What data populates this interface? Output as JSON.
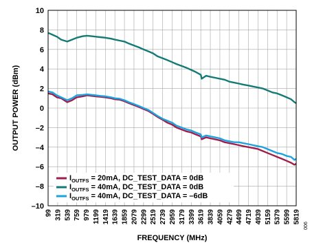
{
  "chart_data": {
    "type": "line",
    "title": "",
    "xlabel": "FREQUENCY (MHz)",
    "ylabel": "OUTPUT POWER (dBm)",
    "xlim": [
      99,
      5819
    ],
    "ylim": [
      -10,
      10
    ],
    "x_ticks": [
      99,
      319,
      539,
      759,
      979,
      1199,
      1419,
      1639,
      1859,
      2079,
      2299,
      2519,
      2739,
      2959,
      3179,
      3399,
      3619,
      3839,
      4059,
      4279,
      4499,
      4719,
      4939,
      5159,
      5379,
      5599,
      5819
    ],
    "y_ticks": [
      -10,
      -8,
      -6,
      -4,
      -2,
      0,
      2,
      4,
      6,
      8,
      10
    ],
    "grid": true,
    "legend_position": "bottom-left",
    "figure_id": "006",
    "series": [
      {
        "name_main": "I",
        "name_sub": "OUTFS",
        "name_rest": " = 20mA, DC_TEST_DATA = 0dB",
        "color": "#9e1f4d",
        "x": [
          99,
          200,
          300,
          400,
          539,
          650,
          759,
          900,
          1000,
          1100,
          1199,
          1300,
          1419,
          1550,
          1639,
          1750,
          1859,
          1960,
          2079,
          2200,
          2299,
          2410,
          2519,
          2620,
          2739,
          2850,
          2959,
          3060,
          3179,
          3300,
          3399,
          3500,
          3619,
          3640,
          3740,
          3839,
          3950,
          4059,
          4170,
          4279,
          4390,
          4499,
          4600,
          4719,
          4830,
          4939,
          5050,
          5159,
          5270,
          5379,
          5490,
          5599,
          5700,
          5780,
          5819
        ],
        "y": [
          1.5,
          1.4,
          1.1,
          1.0,
          0.6,
          0.8,
          1.1,
          1.2,
          1.3,
          1.25,
          1.2,
          1.15,
          1.1,
          1.0,
          0.9,
          0.85,
          0.7,
          0.5,
          0.3,
          0.1,
          -0.1,
          -0.3,
          -0.6,
          -0.9,
          -1.2,
          -1.5,
          -1.7,
          -2.0,
          -2.2,
          -2.4,
          -2.5,
          -2.7,
          -2.9,
          -3.2,
          -3.0,
          -3.1,
          -3.2,
          -3.3,
          -3.5,
          -3.6,
          -3.7,
          -3.8,
          -3.9,
          -4.0,
          -4.1,
          -4.2,
          -4.4,
          -4.6,
          -4.8,
          -5.0,
          -5.2,
          -5.4,
          -5.6,
          -5.8,
          -5.7
        ]
      },
      {
        "name_main": "I",
        "name_sub": "OUTFS",
        "name_rest": " = 40mA, DC_TEST_DATA = 0dB",
        "color": "#137a76",
        "x": [
          99,
          200,
          300,
          400,
          539,
          650,
          759,
          900,
          1000,
          1100,
          1199,
          1300,
          1419,
          1550,
          1639,
          1750,
          1859,
          1960,
          2079,
          2200,
          2299,
          2410,
          2519,
          2620,
          2739,
          2850,
          2959,
          3060,
          3179,
          3300,
          3399,
          3500,
          3619,
          3640,
          3740,
          3839,
          3950,
          4059,
          4170,
          4279,
          4390,
          4499,
          4600,
          4719,
          4830,
          4939,
          5050,
          5159,
          5270,
          5379,
          5490,
          5599,
          5700,
          5780,
          5819
        ],
        "y": [
          7.7,
          7.5,
          7.3,
          7.0,
          6.8,
          7.0,
          7.2,
          7.35,
          7.4,
          7.35,
          7.3,
          7.25,
          7.2,
          7.1,
          7.0,
          6.9,
          6.8,
          6.6,
          6.4,
          6.2,
          6.0,
          5.8,
          5.6,
          5.3,
          5.1,
          4.9,
          4.7,
          4.5,
          4.3,
          4.1,
          3.9,
          3.7,
          3.4,
          3.0,
          3.3,
          3.2,
          3.1,
          3.0,
          2.9,
          2.7,
          2.6,
          2.5,
          2.4,
          2.3,
          2.2,
          2.1,
          2.0,
          1.8,
          1.6,
          1.5,
          1.3,
          1.1,
          0.9,
          0.6,
          0.5
        ]
      },
      {
        "name_main": "I",
        "name_sub": "OUTFS",
        "name_rest": " = 40mA, DC_TEST_DATA = –6dB",
        "color": "#1aa3de",
        "x": [
          99,
          200,
          300,
          400,
          539,
          650,
          759,
          900,
          1000,
          1100,
          1199,
          1300,
          1419,
          1550,
          1639,
          1750,
          1859,
          1960,
          2079,
          2200,
          2299,
          2410,
          2519,
          2620,
          2739,
          2850,
          2959,
          3060,
          3179,
          3300,
          3399,
          3500,
          3619,
          3640,
          3740,
          3839,
          3950,
          4059,
          4170,
          4279,
          4390,
          4499,
          4600,
          4719,
          4830,
          4939,
          5050,
          5159,
          5270,
          5379,
          5490,
          5599,
          5700,
          5780,
          5819
        ],
        "y": [
          1.7,
          1.6,
          1.3,
          1.1,
          0.8,
          1.0,
          1.3,
          1.35,
          1.4,
          1.35,
          1.3,
          1.25,
          1.2,
          1.1,
          1.0,
          0.95,
          0.8,
          0.6,
          0.4,
          0.2,
          0.0,
          -0.2,
          -0.5,
          -0.8,
          -1.1,
          -1.3,
          -1.5,
          -1.8,
          -2.0,
          -2.2,
          -2.3,
          -2.5,
          -2.7,
          -3.0,
          -2.8,
          -2.9,
          -3.0,
          -3.1,
          -3.3,
          -3.4,
          -3.5,
          -3.5,
          -3.6,
          -3.7,
          -3.8,
          -3.9,
          -4.0,
          -4.2,
          -4.4,
          -4.6,
          -4.7,
          -4.9,
          -5.0,
          -5.3,
          -5.2
        ]
      }
    ]
  }
}
